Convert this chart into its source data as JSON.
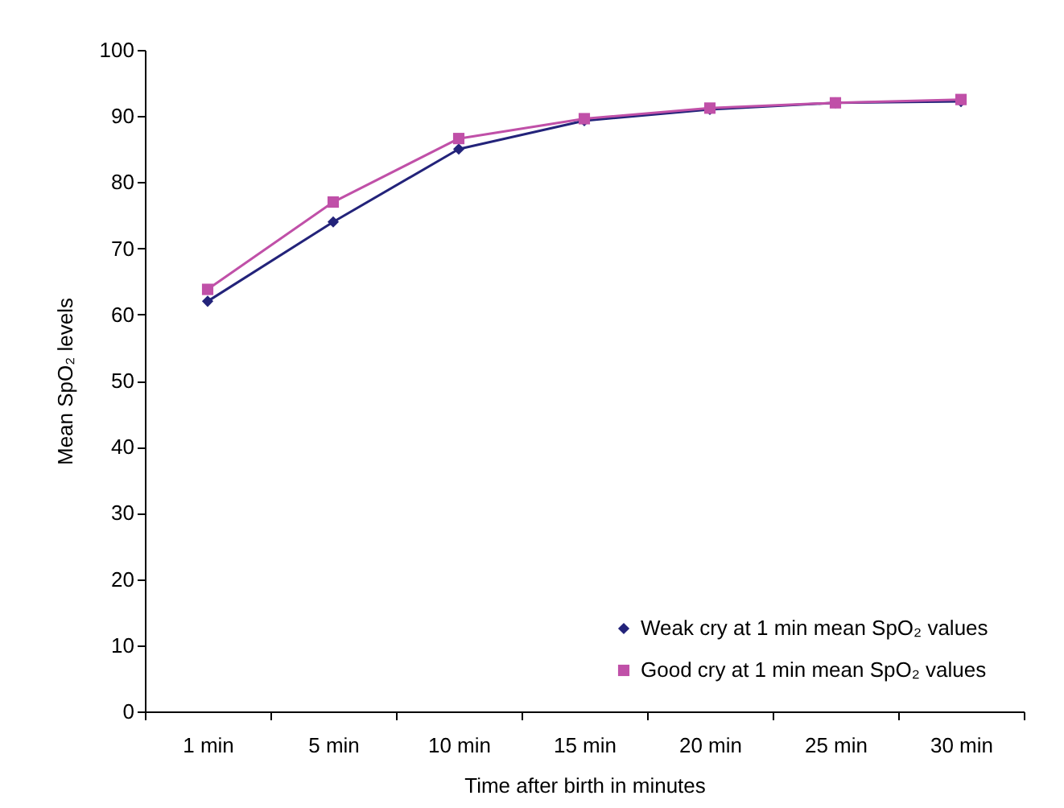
{
  "chart_data": {
    "type": "line",
    "xlabel": "Time after birth in minutes",
    "ylabel": "Mean SpO₂ levels",
    "categories": [
      "1 min",
      "5 min",
      "10 min",
      "15 min",
      "20 min",
      "25 min",
      "30 min"
    ],
    "series": [
      {
        "name": "Weak cry at 1 min mean  SpO₂ values",
        "color": "#23237a",
        "marker": "diamond",
        "values": [
          62,
          74,
          85,
          89.3,
          91,
          92,
          92.2
        ]
      },
      {
        "name": "Good cry at 1 min mean SpO₂ values",
        "color": "#c050a8",
        "marker": "square",
        "values": [
          63.8,
          77,
          86.6,
          89.6,
          91.2,
          92,
          92.5
        ]
      }
    ],
    "ylim": [
      0,
      100
    ],
    "yticks": [
      0,
      10,
      20,
      30,
      40,
      50,
      60,
      70,
      80,
      90,
      100
    ],
    "legend": "bottom right"
  }
}
